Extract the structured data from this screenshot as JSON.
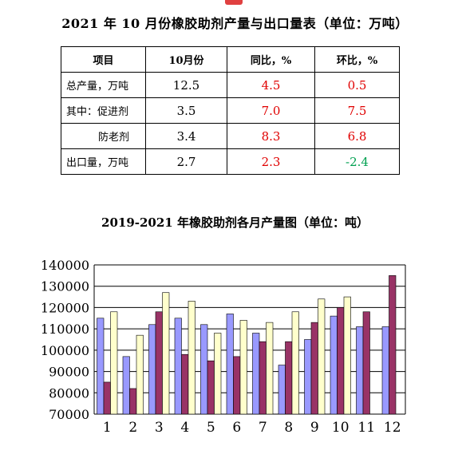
{
  "title": "2021 年 10 月份橡胶助剂产量与出口量表（单位：万吨）",
  "table": {
    "headers": [
      "项目",
      "10月份",
      "同比，%",
      "环比，%"
    ],
    "rows": [
      {
        "label": "总产量，万吨",
        "value": "12.5",
        "yoy": "4.5",
        "mom": "0.5",
        "mom_color": "red"
      },
      {
        "label": "其中：促进剂",
        "value": "3.5",
        "yoy": "7.0",
        "mom": "7.5",
        "mom_color": "red"
      },
      {
        "label": "防老剂",
        "value": "3.4",
        "yoy": "8.3",
        "mom": "6.8",
        "mom_color": "red",
        "indent": true
      },
      {
        "label": "出口量，万吨",
        "value": "2.7",
        "yoy": "2.3",
        "mom": "-2.4",
        "mom_color": "green"
      }
    ]
  },
  "chart_data": {
    "type": "bar",
    "title": "2019-2021 年橡胶助剂各月产量图（单位：吨）",
    "categories": [
      "1",
      "2",
      "3",
      "4",
      "5",
      "6",
      "7",
      "8",
      "9",
      "10",
      "11",
      "12"
    ],
    "ylim": [
      70000,
      140000
    ],
    "yticks": [
      "70000",
      "80000",
      "90000",
      "100000",
      "110000",
      "120000",
      "130000",
      "140000"
    ],
    "grid": true,
    "legend": "none",
    "series": [
      {
        "color": "#9999ff",
        "values": [
          115000,
          97000,
          112000,
          115000,
          112000,
          117000,
          108000,
          93000,
          105000,
          116000,
          111000,
          111000
        ]
      },
      {
        "color": "#993366",
        "values": [
          85000,
          82000,
          118000,
          98000,
          95000,
          97000,
          104000,
          104000,
          113000,
          120000,
          118000,
          135000
        ]
      },
      {
        "color": "#ffffcc",
        "values": [
          118000,
          107000,
          127000,
          123000,
          108000,
          114000,
          113000,
          118000,
          124000,
          125000,
          null,
          null
        ]
      }
    ]
  }
}
